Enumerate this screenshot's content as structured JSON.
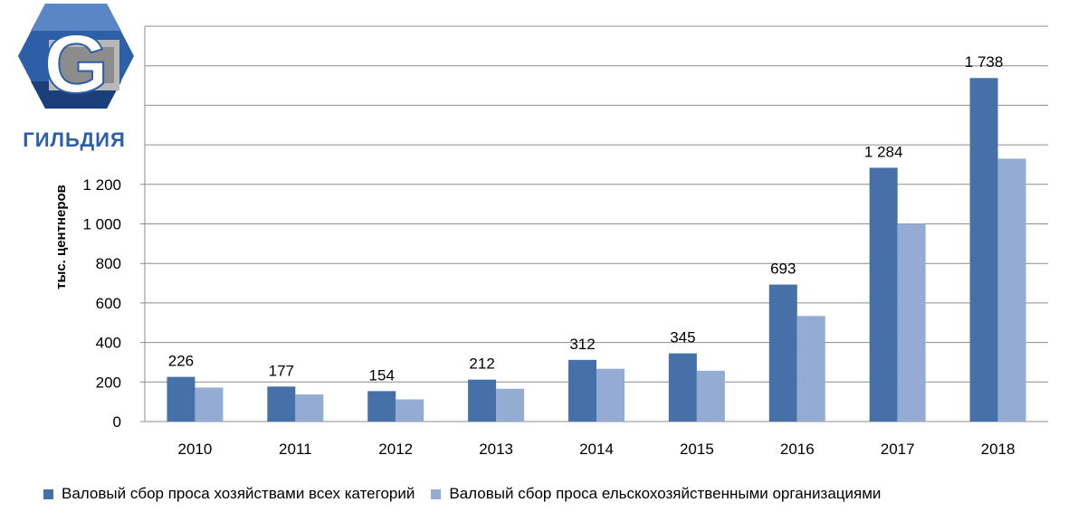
{
  "logo": {
    "letter": "G",
    "name": "ГИЛЬДИЯ"
  },
  "chart_data": {
    "type": "bar",
    "categories": [
      "2010",
      "2011",
      "2012",
      "2013",
      "2014",
      "2015",
      "2016",
      "2017",
      "2018"
    ],
    "series": [
      {
        "name": "Валовый сбор проса хозяйствами всех категорий",
        "color": "#4671a8",
        "values": [
          226,
          177,
          154,
          212,
          312,
          345,
          693,
          1284,
          1738
        ]
      },
      {
        "name": "Валовый сбор проса ельскохозяйственными  организациями",
        "color": "#94abd3",
        "values": [
          172,
          137,
          112,
          166,
          267,
          257,
          534,
          1000,
          1330
        ]
      }
    ],
    "data_labels": [
      "226",
      "177",
      "154",
      "212",
      "312",
      "345",
      "693",
      "1 284",
      "1 738"
    ],
    "ylabel": "тыс. центнеров",
    "ylim": [
      0,
      2000
    ],
    "yticks": [
      {
        "value": 0,
        "label": "0"
      },
      {
        "value": 200,
        "label": "200"
      },
      {
        "value": 400,
        "label": "400"
      },
      {
        "value": 600,
        "label": "600"
      },
      {
        "value": 800,
        "label": "800"
      },
      {
        "value": 1000,
        "label": "1 000"
      },
      {
        "value": 1200,
        "label": "1 200"
      }
    ],
    "grid": true,
    "legend_position": "bottom"
  }
}
